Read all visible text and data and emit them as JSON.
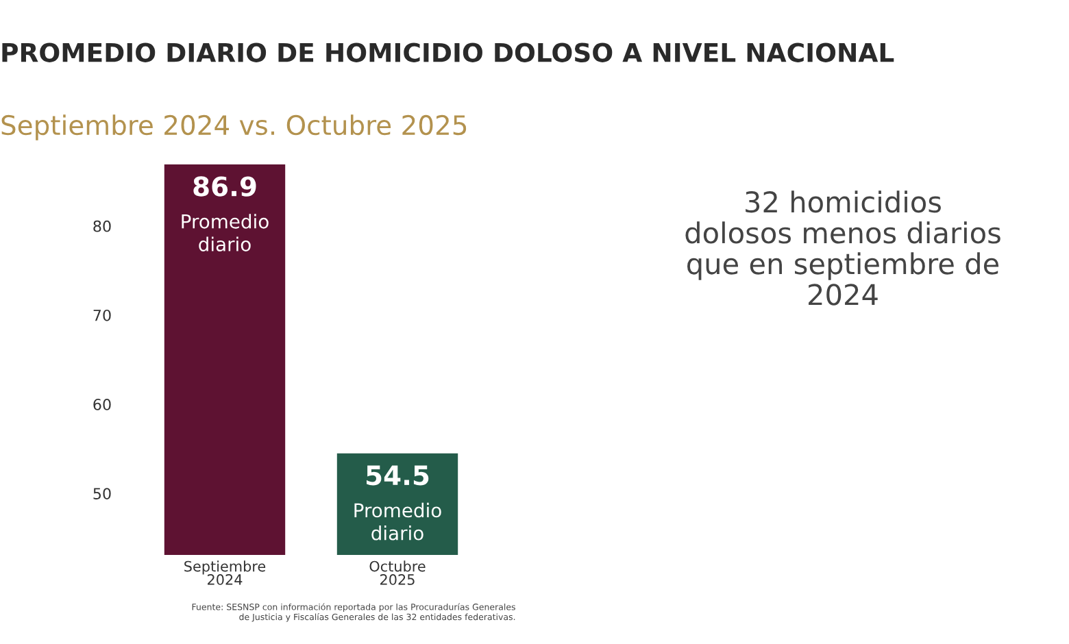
{
  "chart_data": {
    "type": "bar",
    "title": "PROMEDIO DIARIO DE HOMICIDIO DOLOSO A NIVEL NACIONAL",
    "subtitle": "Septiembre 2024 vs. Octubre 2025",
    "categories": [
      "Septiembre\n2024",
      "Octubre\n2025"
    ],
    "values": [
      86.9,
      54.5
    ],
    "colors": [
      "#5e1232",
      "#245c4a"
    ],
    "value_labels": [
      "86.9\nPromedio\ndiario",
      "54.5\nPromedio\ndiario"
    ],
    "ylim": [
      43.1,
      86.9
    ],
    "yticks": [
      50,
      60,
      70,
      80
    ],
    "grid": false,
    "annotations": [
      "32 homicidios\ndolosos menos diarios\nque en septiembre de\n2024",
      "Fuente: SESNSP con información reportada por las Procuradurías Generales\nde Justicia y Fiscalías Generales de las 32 entidades federativas."
    ]
  }
}
